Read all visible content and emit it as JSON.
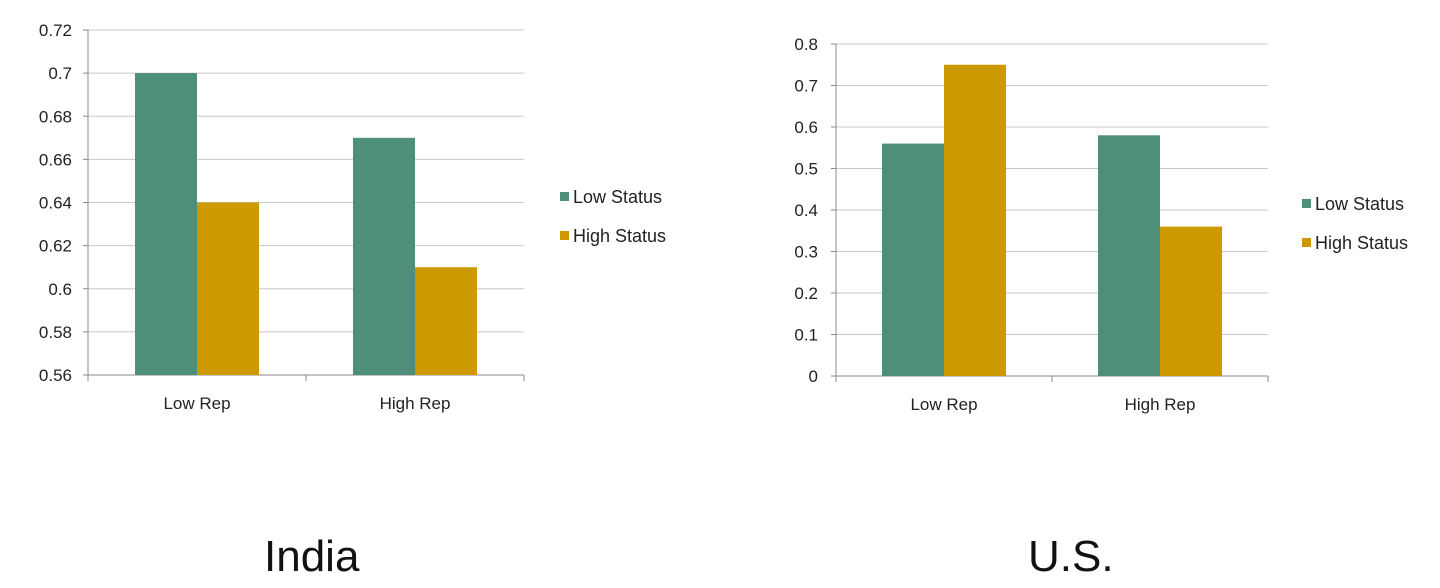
{
  "chart_data": [
    {
      "type": "bar",
      "categories": [
        "Low Rep",
        "High Rep"
      ],
      "series": [
        {
          "name": "Low Status",
          "values": [
            0.7,
            0.67
          ],
          "color": "#4e8f7c"
        },
        {
          "name": "High Status",
          "values": [
            0.64,
            0.61
          ],
          "color": "#cc9a00"
        }
      ],
      "ylim": [
        0.56,
        0.72
      ],
      "yticks": [
        "0.56",
        "0.58",
        "0.6",
        "0.62",
        "0.64",
        "0.66",
        "0.68",
        "0.7",
        "0.72"
      ],
      "grid": true,
      "legend": "right",
      "caption": "India"
    },
    {
      "type": "bar",
      "categories": [
        "Low Rep",
        "High Rep"
      ],
      "series": [
        {
          "name": "Low Status",
          "values": [
            0.56,
            0.58
          ],
          "color": "#4e8f7c"
        },
        {
          "name": "High Status",
          "values": [
            0.75,
            0.36
          ],
          "color": "#cc9a00"
        }
      ],
      "ylim": [
        0,
        0.8
      ],
      "yticks": [
        "0",
        "0.1",
        "0.2",
        "0.3",
        "0.4",
        "0.5",
        "0.6",
        "0.7",
        "0.8"
      ],
      "grid": true,
      "legend": "right",
      "caption": "U.S."
    }
  ]
}
